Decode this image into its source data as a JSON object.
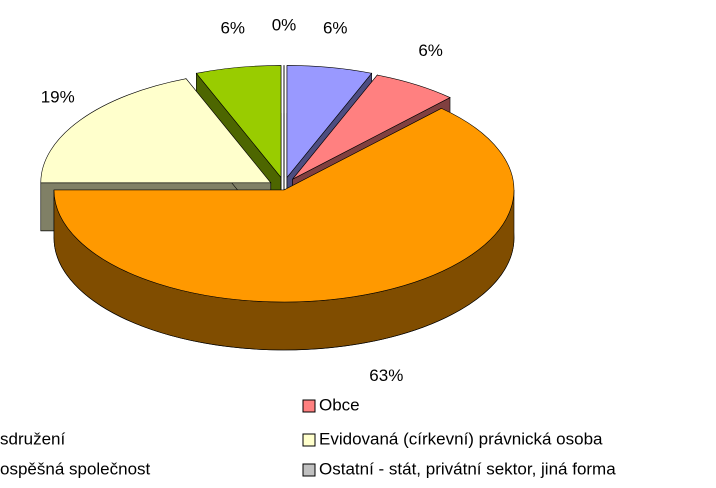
{
  "chart_data": {
    "type": "pie3d",
    "categories": [
      "sdružení",
      "Obce",
      null,
      "Evidovaná (církevní) právnická osoba",
      "ospěšná společnost",
      "Ostatní - stát, privátní sektor, jiná forma"
    ],
    "values": [
      6,
      6,
      63,
      19,
      6,
      0
    ],
    "value_labels": [
      "6%",
      "6%",
      "63%",
      "19%",
      "6%",
      "0%"
    ],
    "colors": [
      "#9999ff",
      "#ff8080",
      "#ff9900",
      "#ffffcc",
      "#99cc00",
      "#c0c0c0"
    ]
  }
}
